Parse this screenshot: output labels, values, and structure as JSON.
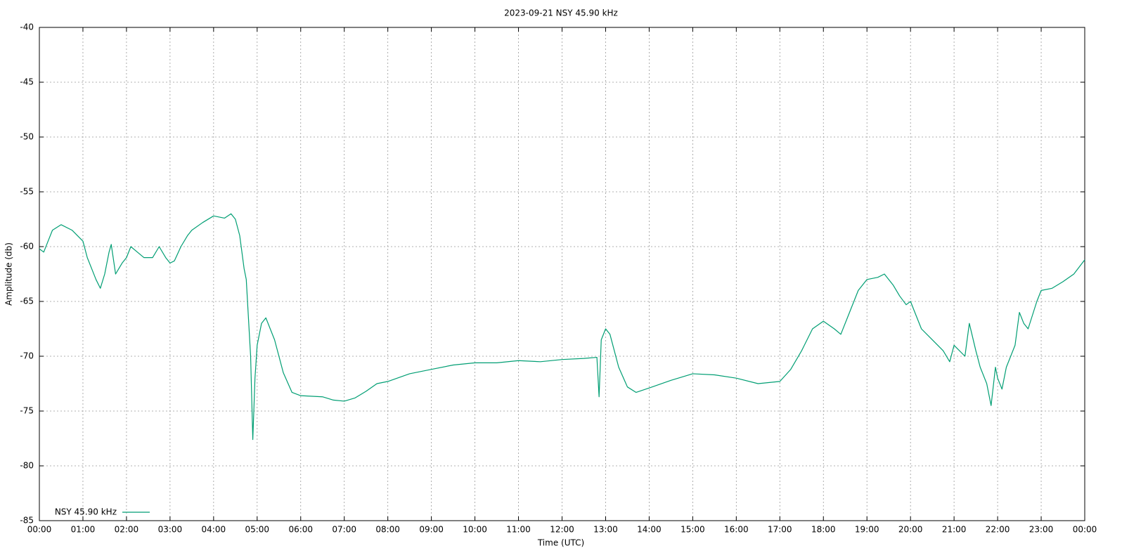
{
  "chart_data": {
    "type": "line",
    "title": "2023-09-21 NSY 45.90 kHz",
    "xlabel": "Time (UTC)",
    "ylabel": "Amplitude (db)",
    "xlim": [
      0,
      24
    ],
    "ylim": [
      -85,
      -40
    ],
    "xticks": [
      {
        "value": 0,
        "label": "00:00"
      },
      {
        "value": 1,
        "label": "01:00"
      },
      {
        "value": 2,
        "label": "02:00"
      },
      {
        "value": 3,
        "label": "03:00"
      },
      {
        "value": 4,
        "label": "04:00"
      },
      {
        "value": 5,
        "label": "05:00"
      },
      {
        "value": 6,
        "label": "06:00"
      },
      {
        "value": 7,
        "label": "07:00"
      },
      {
        "value": 8,
        "label": "08:00"
      },
      {
        "value": 9,
        "label": "09:00"
      },
      {
        "value": 10,
        "label": "10:00"
      },
      {
        "value": 11,
        "label": "11:00"
      },
      {
        "value": 12,
        "label": "12:00"
      },
      {
        "value": 13,
        "label": "13:00"
      },
      {
        "value": 14,
        "label": "14:00"
      },
      {
        "value": 15,
        "label": "15:00"
      },
      {
        "value": 16,
        "label": "16:00"
      },
      {
        "value": 17,
        "label": "17:00"
      },
      {
        "value": 18,
        "label": "18:00"
      },
      {
        "value": 19,
        "label": "19:00"
      },
      {
        "value": 20,
        "label": "20:00"
      },
      {
        "value": 21,
        "label": "21:00"
      },
      {
        "value": 22,
        "label": "22:00"
      },
      {
        "value": 23,
        "label": "23:00"
      },
      {
        "value": 24,
        "label": "00:00"
      }
    ],
    "yticks": [
      -85,
      -80,
      -75,
      -70,
      -65,
      -60,
      -55,
      -50,
      -45,
      -40
    ],
    "grid": true,
    "legend": "lower left",
    "x": [
      0,
      0.1,
      0.2,
      0.3,
      0.5,
      0.75,
      1.0,
      1.1,
      1.2,
      1.3,
      1.4,
      1.5,
      1.6,
      1.65,
      1.75,
      1.9,
      2.0,
      2.1,
      2.25,
      2.4,
      2.6,
      2.75,
      2.9,
      3.0,
      3.1,
      3.25,
      3.4,
      3.5,
      3.75,
      4.0,
      4.25,
      4.4,
      4.5,
      4.6,
      4.7,
      4.75,
      4.85,
      4.9,
      4.95,
      5.0,
      5.1,
      5.2,
      5.4,
      5.6,
      5.8,
      6.0,
      6.5,
      6.75,
      7.0,
      7.25,
      7.5,
      7.75,
      8.0,
      8.5,
      9.0,
      9.5,
      10,
      10.5,
      11,
      11.5,
      12,
      12.5,
      12.8,
      12.85,
      12.9,
      13.0,
      13.1,
      13.3,
      13.5,
      13.7,
      14.0,
      14.5,
      15,
      15.5,
      16,
      16.5,
      17,
      17.25,
      17.5,
      17.75,
      18,
      18.25,
      18.4,
      18.6,
      18.8,
      19.0,
      19.25,
      19.4,
      19.6,
      19.75,
      19.9,
      20.0,
      20.1,
      20.25,
      20.5,
      20.75,
      20.9,
      21.0,
      21.25,
      21.35,
      21.5,
      21.6,
      21.75,
      21.85,
      21.95,
      22.0,
      22.1,
      22.2,
      22.4,
      22.5,
      22.6,
      22.7,
      22.9,
      23.0,
      23.25,
      23.5,
      23.75,
      24.0
    ],
    "series": [
      {
        "name": "NSY 45.90 kHz",
        "color": "#009e73",
        "values": [
          -60.2,
          -60.5,
          -59.5,
          -58.5,
          -58.0,
          -58.5,
          -59.5,
          -61,
          -62,
          -63,
          -63.8,
          -62.5,
          -60.5,
          -59.8,
          -62.5,
          -61.5,
          -61,
          -60,
          -60.5,
          -61,
          -61,
          -60,
          -61,
          -61.5,
          -61.3,
          -60,
          -59,
          -58.5,
          -57.8,
          -57.2,
          -57.4,
          -57.0,
          -57.5,
          -59,
          -62,
          -63,
          -70,
          -77.6,
          -72,
          -69,
          -67,
          -66.5,
          -68.5,
          -71.5,
          -73.3,
          -73.6,
          -73.7,
          -74,
          -74.1,
          -73.8,
          -73.2,
          -72.5,
          -72.3,
          -71.6,
          -71.2,
          -70.8,
          -70.6,
          -70.6,
          -70.4,
          -70.5,
          -70.3,
          -70.2,
          -70.1,
          -73.7,
          -68.5,
          -67.5,
          -68,
          -71,
          -72.8,
          -73.3,
          -72.9,
          -72.2,
          -71.6,
          -71.7,
          -72,
          -72.5,
          -72.3,
          -71.2,
          -69.5,
          -67.5,
          -66.8,
          -67.5,
          -68,
          -66,
          -64,
          -63,
          -62.8,
          -62.5,
          -63.5,
          -64.5,
          -65.3,
          -65,
          -66,
          -67.5,
          -68.5,
          -69.5,
          -70.5,
          -69,
          -70,
          -67,
          -69.5,
          -71,
          -72.5,
          -74.5,
          -71,
          -72,
          -73,
          -71,
          -69,
          -66,
          -67,
          -67.5,
          -65,
          -64,
          -63.8,
          -63.2,
          -62.5,
          -61.2
        ]
      }
    ]
  }
}
